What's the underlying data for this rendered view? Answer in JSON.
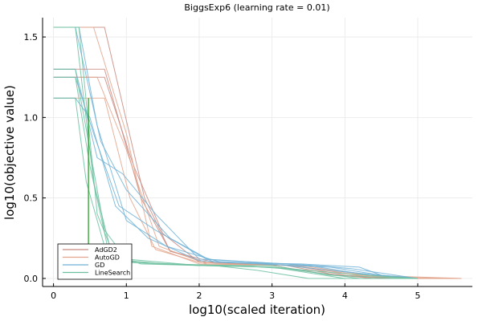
{
  "chart_data": {
    "type": "line",
    "title": "BiggsExp6 (learning rate = 0.01)",
    "xlabel": "log10(scaled iteration)",
    "ylabel": "log10(objective value)",
    "xlim": [
      -0.15,
      5.75
    ],
    "ylim": [
      -0.05,
      1.62
    ],
    "xticks": [
      "0",
      "1",
      "2",
      "3",
      "4",
      "5"
    ],
    "yticks": [
      "0.0",
      "0.5",
      "1.0",
      "1.5"
    ],
    "grid": true,
    "legend_position": "bottom-left",
    "series": [
      {
        "name": "AdGD2",
        "color": "#c98a80",
        "runs": [
          [
            [
              0,
              1.56
            ],
            [
              0.7,
              1.56
            ],
            [
              1.25,
              0.5
            ],
            [
              1.6,
              0.17
            ],
            [
              2.1,
              0.1
            ],
            [
              3.2,
              0.08
            ],
            [
              3.9,
              0.02
            ],
            [
              4.6,
              0.0
            ],
            [
              5.6,
              0.0
            ]
          ],
          [
            [
              0,
              1.3
            ],
            [
              0.7,
              1.3
            ],
            [
              1.2,
              0.5
            ],
            [
              1.6,
              0.17
            ],
            [
              2.2,
              0.1
            ],
            [
              3.3,
              0.08
            ],
            [
              4.0,
              0.02
            ],
            [
              4.7,
              0.0
            ],
            [
              5.6,
              0.0
            ]
          ],
          [
            [
              0,
              1.25
            ],
            [
              0.7,
              1.25
            ],
            [
              1.1,
              0.7
            ],
            [
              1.5,
              0.28
            ],
            [
              2.0,
              0.1
            ],
            [
              3.0,
              0.08
            ],
            [
              3.7,
              0.03
            ],
            [
              4.4,
              0.0
            ],
            [
              5.6,
              0.0
            ]
          ]
        ]
      },
      {
        "name": "AutoGD",
        "color": "#e3a48c",
        "runs": [
          [
            [
              0,
              1.56
            ],
            [
              0.55,
              1.56
            ],
            [
              1.0,
              0.9
            ],
            [
              1.35,
              0.2
            ],
            [
              2.0,
              0.09
            ],
            [
              3.3,
              0.08
            ],
            [
              4.2,
              0.02
            ],
            [
              5.0,
              0.0
            ],
            [
              5.6,
              0.0
            ]
          ],
          [
            [
              0,
              1.12
            ],
            [
              0.7,
              1.12
            ],
            [
              1.05,
              0.5
            ],
            [
              1.4,
              0.18
            ],
            [
              2.0,
              0.1
            ],
            [
              3.3,
              0.08
            ],
            [
              4.3,
              0.01
            ],
            [
              5.6,
              0.0
            ]
          ],
          [
            [
              0,
              1.25
            ],
            [
              0.6,
              1.25
            ],
            [
              1.0,
              0.8
            ],
            [
              1.45,
              0.2
            ],
            [
              2.1,
              0.09
            ],
            [
              3.4,
              0.08
            ],
            [
              4.3,
              0.02
            ],
            [
              5.6,
              0.0
            ]
          ]
        ]
      },
      {
        "name": "GD",
        "color": "#6fb1d6",
        "runs": [
          [
            [
              0,
              1.56
            ],
            [
              0.3,
              1.56
            ],
            [
              0.65,
              0.85
            ],
            [
              1.0,
              0.55
            ],
            [
              1.6,
              0.25
            ],
            [
              2.2,
              0.1
            ],
            [
              3.4,
              0.09
            ],
            [
              4.2,
              0.07
            ],
            [
              4.5,
              0.02
            ],
            [
              5.0,
              0.0
            ]
          ],
          [
            [
              0,
              1.3
            ],
            [
              0.3,
              1.3
            ],
            [
              0.6,
              0.75
            ],
            [
              0.95,
              0.65
            ],
            [
              1.4,
              0.4
            ],
            [
              2.0,
              0.12
            ],
            [
              3.6,
              0.08
            ],
            [
              4.1,
              0.06
            ],
            [
              5.0,
              0.0
            ]
          ],
          [
            [
              0,
              1.25
            ],
            [
              0.3,
              1.25
            ],
            [
              0.55,
              0.9
            ],
            [
              0.9,
              0.45
            ],
            [
              1.4,
              0.3
            ],
            [
              2.1,
              0.12
            ],
            [
              3.5,
              0.08
            ],
            [
              4.35,
              0.02
            ],
            [
              5.0,
              0.0
            ]
          ],
          [
            [
              0,
              1.12
            ],
            [
              0.3,
              1.12
            ],
            [
              0.5,
              1.0
            ],
            [
              0.85,
              0.45
            ],
            [
              1.3,
              0.25
            ],
            [
              2.0,
              0.11
            ],
            [
              3.0,
              0.09
            ],
            [
              4.0,
              0.04
            ],
            [
              5.0,
              0.0
            ]
          ],
          [
            [
              0,
              1.56
            ],
            [
              0.35,
              1.56
            ],
            [
              0.6,
              0.95
            ],
            [
              1.0,
              0.36
            ],
            [
              1.55,
              0.2
            ],
            [
              2.3,
              0.1
            ],
            [
              3.8,
              0.07
            ],
            [
              4.5,
              0.02
            ],
            [
              5.0,
              0.0
            ]
          ]
        ]
      },
      {
        "name": "LineSearch",
        "color": "#6cc0a0",
        "runs": [
          [
            [
              0,
              1.56
            ],
            [
              0.3,
              1.56
            ],
            [
              0.55,
              0.6
            ],
            [
              0.8,
              0.15
            ],
            [
              1.2,
              0.09
            ],
            [
              2.0,
              0.08
            ],
            [
              3.0,
              0.07
            ],
            [
              4.0,
              0.03
            ],
            [
              5.0,
              0.0
            ]
          ],
          [
            [
              0,
              1.3
            ],
            [
              0.3,
              1.3
            ],
            [
              0.5,
              0.8
            ],
            [
              0.7,
              0.3
            ],
            [
              1.0,
              0.12
            ],
            [
              2.0,
              0.08
            ],
            [
              3.0,
              0.08
            ],
            [
              3.8,
              0.02
            ],
            [
              5.0,
              0.0
            ]
          ],
          [
            [
              0,
              1.25
            ],
            [
              0.3,
              1.25
            ],
            [
              0.5,
              0.7
            ],
            [
              0.75,
              0.18
            ],
            [
              1.1,
              0.1
            ],
            [
              2.2,
              0.08
            ],
            [
              2.8,
              0.05
            ],
            [
              3.5,
              0.0
            ],
            [
              5.0,
              0.0
            ]
          ],
          [
            [
              0,
              1.12
            ],
            [
              0.3,
              1.12
            ],
            [
              0.45,
              0.6
            ],
            [
              0.7,
              0.2
            ],
            [
              1.0,
              0.1
            ],
            [
              2.0,
              0.08
            ],
            [
              3.0,
              0.07
            ],
            [
              4.0,
              0.0
            ],
            [
              5.0,
              0.0
            ]
          ],
          [
            [
              0,
              1.56
            ],
            [
              0.35,
              1.56
            ],
            [
              0.6,
              0.4
            ],
            [
              0.85,
              0.12
            ],
            [
              1.5,
              0.09
            ],
            [
              2.5,
              0.08
            ],
            [
              3.2,
              0.06
            ],
            [
              4.2,
              0.0
            ],
            [
              5.0,
              0.0
            ]
          ]
        ]
      },
      {
        "name": "",
        "color": "#2ca02c",
        "runs": [
          [
            [
              0.48,
              1.12
            ],
            [
              0.48,
              0.0
            ]
          ]
        ]
      }
    ]
  }
}
